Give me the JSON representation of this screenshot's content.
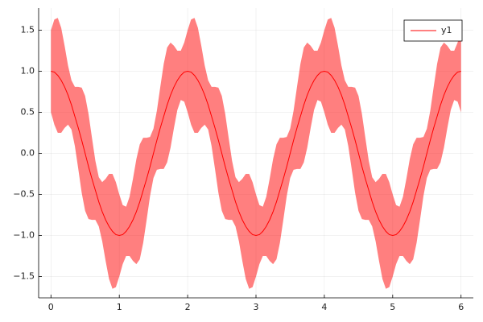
{
  "chart_data": {
    "type": "line",
    "x": [
      0,
      0.05,
      0.1,
      0.15,
      0.2,
      0.25,
      0.3,
      0.35,
      0.4,
      0.45,
      0.5,
      0.55,
      0.6,
      0.65,
      0.7,
      0.75,
      0.8,
      0.85,
      0.9,
      0.95,
      1,
      1.05,
      1.1,
      1.15,
      1.2,
      1.25,
      1.3,
      1.35,
      1.4,
      1.45,
      1.5,
      1.55,
      1.6,
      1.65,
      1.7,
      1.75,
      1.8,
      1.85,
      1.9,
      1.95,
      2,
      2.05,
      2.1,
      2.15,
      2.2,
      2.25,
      2.3,
      2.35,
      2.4,
      2.45,
      2.5,
      2.55,
      2.6,
      2.65,
      2.7,
      2.75,
      2.8,
      2.85,
      2.9,
      2.95,
      3,
      3.05,
      3.1,
      3.15,
      3.2,
      3.25,
      3.3,
      3.35,
      3.4,
      3.45,
      3.5,
      3.55,
      3.6,
      3.65,
      3.7,
      3.75,
      3.8,
      3.85,
      3.9,
      3.95,
      4,
      4.05,
      4.1,
      4.15,
      4.2,
      4.25,
      4.3,
      4.35,
      4.4,
      4.45,
      4.5,
      4.55,
      4.6,
      4.65,
      4.7,
      4.75,
      4.8,
      4.85,
      4.9,
      4.95,
      5,
      5.05,
      5.1,
      5.15,
      5.2,
      5.25,
      5.3,
      5.35,
      5.4,
      5.45,
      5.5,
      5.55,
      5.6,
      5.65,
      5.7,
      5.75,
      5.8,
      5.85,
      5.9,
      5.95,
      6
    ],
    "series": [
      {
        "name": "y1",
        "color": "#ff0000",
        "values": [
          1,
          0.99,
          0.95,
          0.89,
          0.81,
          0.71,
          0.59,
          0.45,
          0.31,
          0.16,
          0,
          -0.16,
          -0.31,
          -0.45,
          -0.59,
          -0.71,
          -0.81,
          -0.89,
          -0.95,
          -0.99,
          -1,
          -0.99,
          -0.95,
          -0.89,
          -0.81,
          -0.71,
          -0.59,
          -0.45,
          -0.31,
          -0.16,
          0,
          0.16,
          0.31,
          0.45,
          0.59,
          0.71,
          0.81,
          0.89,
          0.95,
          0.99,
          1,
          0.99,
          0.95,
          0.89,
          0.81,
          0.71,
          0.59,
          0.45,
          0.31,
          0.16,
          0,
          -0.16,
          -0.31,
          -0.45,
          -0.59,
          -0.71,
          -0.81,
          -0.89,
          -0.95,
          -0.99,
          -1,
          -0.99,
          -0.95,
          -0.89,
          -0.81,
          -0.71,
          -0.59,
          -0.45,
          -0.31,
          -0.16,
          0,
          0.16,
          0.31,
          0.45,
          0.59,
          0.71,
          0.81,
          0.89,
          0.95,
          0.99,
          1,
          0.99,
          0.95,
          0.89,
          0.81,
          0.71,
          0.59,
          0.45,
          0.31,
          0.16,
          0,
          -0.16,
          -0.31,
          -0.45,
          -0.59,
          -0.71,
          -0.81,
          -0.89,
          -0.95,
          -0.99,
          -1,
          -0.99,
          -0.95,
          -0.89,
          -0.81,
          -0.71,
          -0.59,
          -0.45,
          -0.31,
          -0.16,
          0,
          0.16,
          0.31,
          0.45,
          0.59,
          0.71,
          0.81,
          0.89,
          0.95,
          0.99,
          1
        ],
        "upper": [
          1.5,
          1.63,
          1.65,
          1.53,
          1.31,
          1.07,
          0.89,
          0.81,
          0.81,
          0.8,
          0.7,
          0.48,
          0.19,
          -0.09,
          -0.29,
          -0.35,
          -0.31,
          -0.25,
          -0.25,
          -0.35,
          -0.5,
          -0.63,
          -0.65,
          -0.53,
          -0.31,
          -0.07,
          0.11,
          0.19,
          0.19,
          0.2,
          0.3,
          0.52,
          0.81,
          1.09,
          1.29,
          1.35,
          1.31,
          1.25,
          1.25,
          1.35,
          1.5,
          1.63,
          1.65,
          1.53,
          1.31,
          1.07,
          0.89,
          0.81,
          0.81,
          0.8,
          0.7,
          0.48,
          0.19,
          -0.09,
          -0.29,
          -0.35,
          -0.31,
          -0.25,
          -0.25,
          -0.35,
          -0.5,
          -0.63,
          -0.65,
          -0.53,
          -0.31,
          -0.07,
          0.11,
          0.19,
          0.19,
          0.2,
          0.3,
          0.52,
          0.81,
          1.09,
          1.29,
          1.35,
          1.31,
          1.25,
          1.25,
          1.35,
          1.5,
          1.63,
          1.65,
          1.53,
          1.31,
          1.07,
          0.89,
          0.81,
          0.81,
          0.8,
          0.7,
          0.48,
          0.19,
          -0.09,
          -0.29,
          -0.35,
          -0.31,
          -0.25,
          -0.25,
          -0.35,
          -0.5,
          -0.63,
          -0.65,
          -0.53,
          -0.31,
          -0.07,
          0.11,
          0.19,
          0.19,
          0.2,
          0.3,
          0.52,
          0.81,
          1.09,
          1.29,
          1.35,
          1.31,
          1.25,
          1.25,
          1.35,
          1.5
        ],
        "lower": [
          0.5,
          0.35,
          0.25,
          0.25,
          0.31,
          0.35,
          0.29,
          0.09,
          -0.19,
          -0.48,
          -0.7,
          -0.8,
          -0.81,
          -0.81,
          -0.89,
          -1.07,
          -1.31,
          -1.53,
          -1.65,
          -1.63,
          -1.5,
          -1.35,
          -1.25,
          -1.25,
          -1.31,
          -1.35,
          -1.29,
          -1.09,
          -0.81,
          -0.52,
          -0.3,
          -0.2,
          -0.19,
          -0.19,
          -0.11,
          0.07,
          0.31,
          0.53,
          0.65,
          0.63,
          0.5,
          0.35,
          0.25,
          0.25,
          0.31,
          0.35,
          0.29,
          0.09,
          -0.19,
          -0.48,
          -0.7,
          -0.8,
          -0.81,
          -0.81,
          -0.89,
          -1.07,
          -1.31,
          -1.53,
          -1.65,
          -1.63,
          -1.5,
          -1.35,
          -1.25,
          -1.25,
          -1.31,
          -1.35,
          -1.29,
          -1.09,
          -0.81,
          -0.52,
          -0.3,
          -0.2,
          -0.19,
          -0.19,
          -0.11,
          0.07,
          0.31,
          0.53,
          0.65,
          0.63,
          0.5,
          0.35,
          0.25,
          0.25,
          0.31,
          0.35,
          0.29,
          0.09,
          -0.19,
          -0.48,
          -0.7,
          -0.8,
          -0.81,
          -0.81,
          -0.89,
          -1.07,
          -1.31,
          -1.53,
          -1.65,
          -1.63,
          -1.5,
          -1.35,
          -1.25,
          -1.25,
          -1.31,
          -1.35,
          -1.29,
          -1.09,
          -0.81,
          -0.52,
          -0.3,
          -0.2,
          -0.19,
          -0.19,
          -0.11,
          0.07,
          0.31,
          0.53,
          0.65,
          0.63,
          0.5
        ]
      }
    ],
    "xlim": [
      -0.18,
      6.18
    ],
    "ylim": [
      -1.76,
      1.77
    ],
    "xticks": [
      0,
      1,
      2,
      3,
      4,
      5,
      6
    ],
    "yticks": [
      {
        "value": -1.5,
        "label": "−1.5"
      },
      {
        "value": -1,
        "label": "−1.0"
      },
      {
        "value": -0.5,
        "label": "−0.5"
      },
      {
        "value": 0,
        "label": "0.0"
      },
      {
        "value": 0.5,
        "label": "0.5"
      },
      {
        "value": 1,
        "label": "1.0"
      },
      {
        "value": 1.5,
        "label": "1.5"
      }
    ],
    "grid": true,
    "legend": "top-right"
  }
}
